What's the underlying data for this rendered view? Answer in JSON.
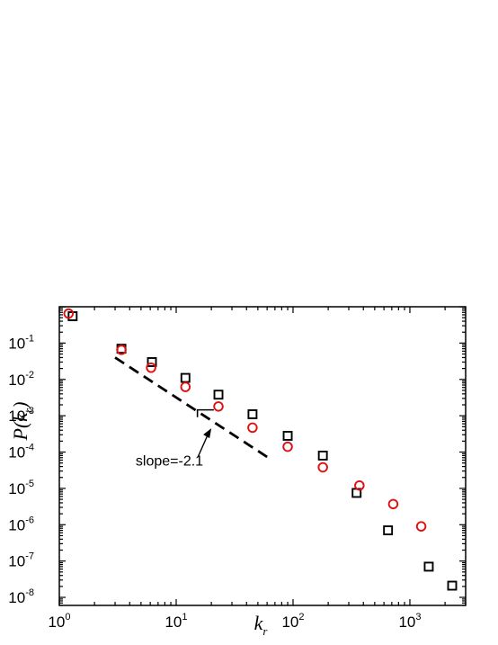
{
  "chart_data": {
    "type": "scatter",
    "x_scale": "log",
    "y_scale": "log",
    "xlim": [
      1,
      3000
    ],
    "ylim": [
      6e-09,
      1
    ],
    "x_tick_values": [
      1,
      10,
      100,
      1000
    ],
    "x_tick_labels": [
      {
        "base": "10",
        "exp": "0"
      },
      {
        "base": "10",
        "exp": "1"
      },
      {
        "base": "10",
        "exp": "2"
      },
      {
        "base": "10",
        "exp": "3"
      }
    ],
    "y_tick_values": [
      0.1,
      0.01,
      0.001,
      0.0001,
      1e-05,
      1e-06,
      1e-07,
      1e-08
    ],
    "y_tick_labels": [
      {
        "base": "10",
        "exp": "-1"
      },
      {
        "base": "10",
        "exp": "-2"
      },
      {
        "base": "10",
        "exp": "-3"
      },
      {
        "base": "10",
        "exp": "-4"
      },
      {
        "base": "10",
        "exp": "-5"
      },
      {
        "base": "10",
        "exp": "-6"
      },
      {
        "base": "10",
        "exp": "-7"
      },
      {
        "base": "10",
        "exp": "-8"
      }
    ],
    "xlabel": {
      "main": "k",
      "sub": "r"
    },
    "ylabel": {
      "pre": "P(k",
      "sub": "r",
      "post": ")"
    },
    "grid": false,
    "series": [
      {
        "marker": "square",
        "color": "#000000",
        "x": [
          1.3,
          3.4,
          6.2,
          12,
          23,
          45,
          90,
          180,
          350,
          650,
          1450,
          2300
        ],
        "y": [
          0.55,
          0.07,
          0.03,
          0.011,
          0.0038,
          0.0011,
          0.00028,
          8e-05,
          7.5e-06,
          7e-07,
          7e-08,
          2.1e-08
        ]
      },
      {
        "marker": "circle",
        "color": "#e01010",
        "x": [
          1.2,
          3.4,
          6.1,
          12,
          23,
          45,
          90,
          180,
          370,
          720,
          1250
        ],
        "y": [
          0.65,
          0.065,
          0.021,
          0.0062,
          0.0018,
          0.00047,
          0.00014,
          3.8e-05,
          1.2e-05,
          3.7e-06,
          9e-07
        ]
      }
    ],
    "fit_line": {
      "style": "dashed",
      "color": "#000000",
      "x": [
        3,
        60
      ],
      "y": [
        0.04,
        7.35e-05
      ]
    },
    "annotation": {
      "text": "slope=-2.1",
      "arrow_target": [
        20,
        0.00045
      ],
      "text_anchor": [
        4.5,
        4.2e-05
      ]
    },
    "slope_marker": {
      "corner": [
        15.2,
        0.00145
      ],
      "end_x": 21,
      "end_y": 0.00051
    }
  }
}
